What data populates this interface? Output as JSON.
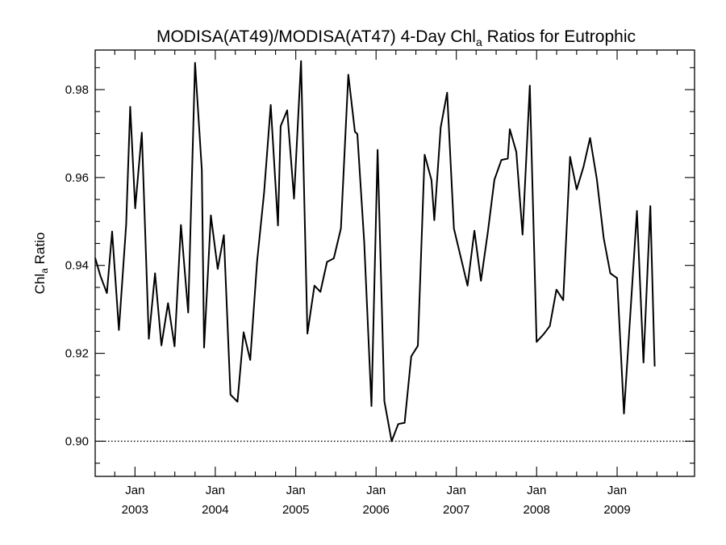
{
  "chart_data": {
    "type": "line",
    "title": "MODISA(AT49)/MODISA(AT47) 4-Day Chl",
    "title_subscript": "a",
    "title_suffix": " Ratios for Eutrophic",
    "ylabel": "Chl",
    "ylabel_subscript": "a",
    "ylabel_suffix": " Ratio",
    "xlabel": "",
    "ylim": [
      0.892,
      0.989
    ],
    "xlim": [
      "2002-07-04",
      "2009-12-19"
    ],
    "y_ticks": [
      {
        "value": 0.9,
        "label": "0.90"
      },
      {
        "value": 0.92,
        "label": "0.92"
      },
      {
        "value": 0.94,
        "label": "0.94"
      },
      {
        "value": 0.96,
        "label": "0.96"
      },
      {
        "value": 0.98,
        "label": "0.98"
      }
    ],
    "x_ticks": [
      {
        "value": "2003-01-01",
        "label_top": "Jan",
        "label_bottom": "2003"
      },
      {
        "value": "2004-01-01",
        "label_top": "Jan",
        "label_bottom": "2004"
      },
      {
        "value": "2005-01-01",
        "label_top": "Jan",
        "label_bottom": "2005"
      },
      {
        "value": "2006-01-01",
        "label_top": "Jan",
        "label_bottom": "2006"
      },
      {
        "value": "2007-01-01",
        "label_top": "Jan",
        "label_bottom": "2007"
      },
      {
        "value": "2008-01-01",
        "label_top": "Jan",
        "label_bottom": "2008"
      },
      {
        "value": "2009-01-01",
        "label_top": "Jan",
        "label_bottom": "2009"
      }
    ],
    "reference_line": {
      "y": 0.9,
      "style": "dotted"
    },
    "grid": false,
    "series": [
      {
        "color": "#000000",
        "points": [
          [
            "2002-07-04",
            0.9417
          ],
          [
            "2002-07-28",
            0.9376
          ],
          [
            "2002-08-26",
            0.9337
          ],
          [
            "2002-09-19",
            0.9477
          ],
          [
            "2002-10-20",
            0.9253
          ],
          [
            "2002-11-22",
            0.9493
          ],
          [
            "2002-12-10",
            0.9761
          ],
          [
            "2003-01-02",
            0.953
          ],
          [
            "2003-02-01",
            0.9702
          ],
          [
            "2003-03-05",
            0.9233
          ],
          [
            "2003-04-02",
            0.9382
          ],
          [
            "2003-05-01",
            0.9218
          ],
          [
            "2003-05-31",
            0.9314
          ],
          [
            "2003-06-30",
            0.9216
          ],
          [
            "2003-07-29",
            0.9492
          ],
          [
            "2003-08-31",
            0.9293
          ],
          [
            "2003-10-01",
            0.9861
          ],
          [
            "2003-11-01",
            0.9617
          ],
          [
            "2003-11-11",
            0.9213
          ],
          [
            "2003-12-12",
            0.9514
          ],
          [
            "2004-01-12",
            0.9392
          ],
          [
            "2004-02-09",
            0.9469
          ],
          [
            "2004-03-10",
            0.9106
          ],
          [
            "2004-04-11",
            0.909
          ],
          [
            "2004-05-09",
            0.9248
          ],
          [
            "2004-06-08",
            0.9185
          ],
          [
            "2004-07-09",
            0.9409
          ],
          [
            "2004-08-10",
            0.9566
          ],
          [
            "2004-09-09",
            0.9765
          ],
          [
            "2004-10-12",
            0.9491
          ],
          [
            "2004-10-24",
            0.9717
          ],
          [
            "2004-11-23",
            0.9753
          ],
          [
            "2004-12-24",
            0.9552
          ],
          [
            "2005-01-25",
            0.9865
          ],
          [
            "2005-02-23",
            0.9245
          ],
          [
            "2005-03-27",
            0.9354
          ],
          [
            "2005-04-23",
            0.934
          ],
          [
            "2005-05-23",
            0.9408
          ],
          [
            "2005-06-23",
            0.9416
          ],
          [
            "2005-07-25",
            0.9484
          ],
          [
            "2005-08-28",
            0.9834
          ],
          [
            "2005-09-27",
            0.9704
          ],
          [
            "2005-10-08",
            0.9699
          ],
          [
            "2005-11-08",
            0.9453
          ],
          [
            "2005-12-11",
            0.908
          ],
          [
            "2006-01-08",
            0.9663
          ],
          [
            "2006-02-08",
            0.9091
          ],
          [
            "2006-03-13",
            0.9
          ],
          [
            "2006-04-12",
            0.9039
          ],
          [
            "2006-05-11",
            0.9042
          ],
          [
            "2006-06-10",
            0.9193
          ],
          [
            "2006-07-10",
            0.9217
          ],
          [
            "2006-08-10",
            0.9652
          ],
          [
            "2006-09-10",
            0.9594
          ],
          [
            "2006-09-23",
            0.9503
          ],
          [
            "2006-10-22",
            0.9714
          ],
          [
            "2006-11-20",
            0.9793
          ],
          [
            "2006-12-21",
            0.9484
          ],
          [
            "2007-01-20",
            0.9421
          ],
          [
            "2007-02-21",
            0.9354
          ],
          [
            "2007-03-24",
            0.9479
          ],
          [
            "2007-04-23",
            0.9365
          ],
          [
            "2007-05-24",
            0.9475
          ],
          [
            "2007-06-23",
            0.9595
          ],
          [
            "2007-07-25",
            0.964
          ],
          [
            "2007-08-23",
            0.9643
          ],
          [
            "2007-09-01",
            0.971
          ],
          [
            "2007-10-01",
            0.9658
          ],
          [
            "2007-10-29",
            0.947
          ],
          [
            "2007-12-01",
            0.9809
          ],
          [
            "2008-01-01",
            0.9226
          ],
          [
            "2008-02-01",
            0.9243
          ],
          [
            "2008-03-01",
            0.9262
          ],
          [
            "2008-03-31",
            0.9345
          ],
          [
            "2008-05-01",
            0.9321
          ],
          [
            "2008-06-01",
            0.9647
          ],
          [
            "2008-07-01",
            0.9573
          ],
          [
            "2008-08-01",
            0.9624
          ],
          [
            "2008-08-31",
            0.969
          ],
          [
            "2008-10-01",
            0.9596
          ],
          [
            "2008-11-01",
            0.9462
          ],
          [
            "2008-12-01",
            0.9382
          ],
          [
            "2009-01-01",
            0.9371
          ],
          [
            "2009-02-01",
            0.9063
          ],
          [
            "2009-04-01",
            0.9524
          ],
          [
            "2009-05-01",
            0.9179
          ],
          [
            "2009-06-01",
            0.9535
          ],
          [
            "2009-06-21",
            0.917
          ]
        ]
      }
    ]
  }
}
